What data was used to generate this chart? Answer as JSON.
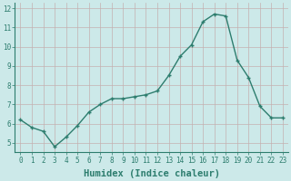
{
  "x": [
    0,
    1,
    2,
    3,
    4,
    5,
    6,
    7,
    8,
    9,
    10,
    11,
    12,
    13,
    14,
    15,
    16,
    17,
    18,
    19,
    20,
    21,
    22,
    23
  ],
  "y": [
    6.2,
    5.8,
    5.6,
    4.8,
    5.3,
    5.9,
    6.6,
    7.0,
    7.3,
    7.3,
    7.4,
    7.5,
    7.7,
    8.5,
    9.5,
    10.1,
    11.3,
    11.7,
    11.6,
    9.3,
    8.4,
    6.9,
    6.3,
    6.3
  ],
  "xlabel": "Humidex (Indice chaleur)",
  "xlim": [
    -0.5,
    23.5
  ],
  "ylim": [
    4.5,
    12.3
  ],
  "yticks": [
    5,
    6,
    7,
    8,
    9,
    10,
    11,
    12
  ],
  "xticks": [
    0,
    1,
    2,
    3,
    4,
    5,
    6,
    7,
    8,
    9,
    10,
    11,
    12,
    13,
    14,
    15,
    16,
    17,
    18,
    19,
    20,
    21,
    22,
    23
  ],
  "line_color": "#2d7d6e",
  "bg_color": "#cce9e9",
  "grid_color_v": "#c4b0b0",
  "grid_color_h": "#c4b0b0",
  "xlabel_fontsize": 7.5,
  "tick_fontsize": 5.5
}
